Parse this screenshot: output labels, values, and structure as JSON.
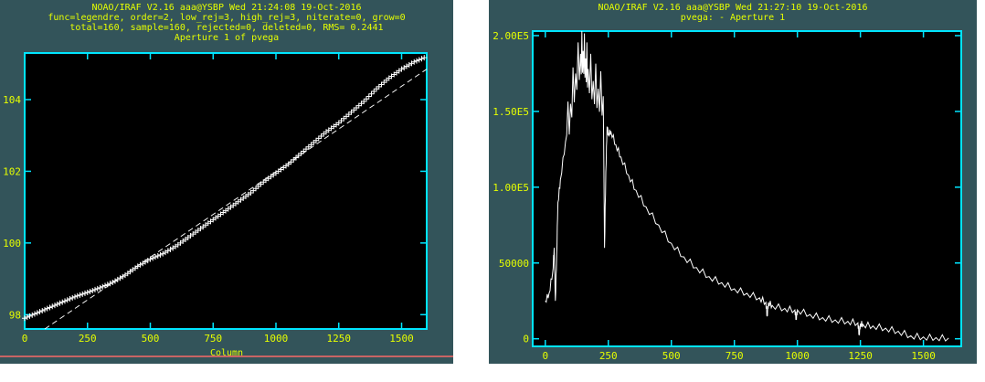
{
  "colors": {
    "window_bg": "#33545a",
    "plot_bg": "#000000",
    "frame": "#00e5ff",
    "text": "#e6ff00",
    "trace": "#ffffff"
  },
  "left_window": {
    "header": [
      "NOAO/IRAF V2.16 aaa@YSBP Wed 21:24:08 19-Oct-2016",
      "func=legendre, order=2, low_rej=3, high_rej=3, niterate=0, grow=0",
      "total=160, sample=160, rejected=0, deleted=0, RMS= 0.2441",
      "Aperture 1 of pvega"
    ],
    "x_axis_label": "Column"
  },
  "right_window": {
    "header": [
      "NOAO/IRAF V2.16 aaa@YSBP Wed 21:27:10 19-Oct-2016",
      "pvega:                    - Aperture 1"
    ]
  },
  "chart_data": [
    {
      "type": "scatter",
      "xlim": [
        0,
        1600
      ],
      "ylim": [
        97.6,
        105.3
      ],
      "x_ticks": [
        0,
        250,
        500,
        750,
        1000,
        1250,
        1500
      ],
      "x_tick_labels": [
        "0",
        "250",
        "500",
        "750",
        "1000",
        "1250",
        "1500"
      ],
      "y_ticks": [
        98,
        100,
        102,
        104
      ],
      "y_tick_labels": [
        "98",
        "100",
        "102",
        "104"
      ],
      "xlabel": "Column",
      "x": [
        0,
        50,
        100,
        150,
        200,
        250,
        300,
        350,
        400,
        450,
        500,
        550,
        600,
        650,
        700,
        750,
        800,
        850,
        900,
        950,
        1000,
        1050,
        1100,
        1150,
        1200,
        1250,
        1300,
        1350,
        1400,
        1450,
        1500,
        1550,
        1600
      ],
      "y": [
        97.9,
        98.05,
        98.2,
        98.35,
        98.5,
        98.62,
        98.75,
        98.9,
        99.1,
        99.35,
        99.55,
        99.7,
        99.9,
        100.15,
        100.4,
        100.65,
        100.9,
        101.15,
        101.4,
        101.7,
        101.95,
        102.2,
        102.5,
        102.8,
        103.1,
        103.35,
        103.65,
        103.95,
        104.3,
        104.6,
        104.85,
        105.05,
        105.2
      ],
      "fit_line": {
        "x": [
          80,
          1600
        ],
        "y": [
          97.6,
          104.85
        ]
      }
    },
    {
      "type": "line",
      "xlim": [
        -50,
        1650
      ],
      "ylim": [
        -5000,
        203000
      ],
      "x_ticks": [
        0,
        250,
        500,
        750,
        1000,
        1250,
        1500
      ],
      "x_tick_labels": [
        "0",
        "250",
        "500",
        "750",
        "1000",
        "1250",
        "1500"
      ],
      "y_ticks": [
        0,
        50000,
        100000,
        150000,
        200000
      ],
      "y_tick_labels": [
        "0",
        "50000",
        "1.00E5",
        "1.50E5",
        "2.00E5"
      ],
      "x": [
        0,
        15,
        30,
        35,
        40,
        45,
        50,
        60,
        80,
        100,
        120,
        140,
        150,
        160,
        170,
        190,
        210,
        230,
        235,
        240,
        245,
        250,
        260,
        280,
        300,
        330,
        360,
        400,
        450,
        500,
        550,
        600,
        650,
        700,
        750,
        800,
        850,
        875,
        880,
        885,
        900,
        950,
        990,
        995,
        1000,
        1050,
        1100,
        1150,
        1200,
        1240,
        1245,
        1250,
        1260,
        1300,
        1350,
        1400,
        1450,
        1500,
        1550,
        1600
      ],
      "y": [
        25000,
        30000,
        45000,
        60000,
        25000,
        55000,
        90000,
        105000,
        130000,
        155000,
        175000,
        188000,
        190000,
        185000,
        178000,
        170000,
        165000,
        160000,
        60000,
        110000,
        140000,
        135000,
        137000,
        128000,
        120000,
        108000,
        98000,
        87000,
        75000,
        63000,
        54000,
        47000,
        41000,
        37000,
        33000,
        30000,
        27000,
        24000,
        15000,
        24000,
        22000,
        20000,
        19000,
        13000,
        19000,
        16000,
        14000,
        12500,
        11500,
        10500,
        3000,
        10000,
        9500,
        8500,
        7000,
        5000,
        2000,
        1200,
        800,
        500
      ]
    }
  ]
}
